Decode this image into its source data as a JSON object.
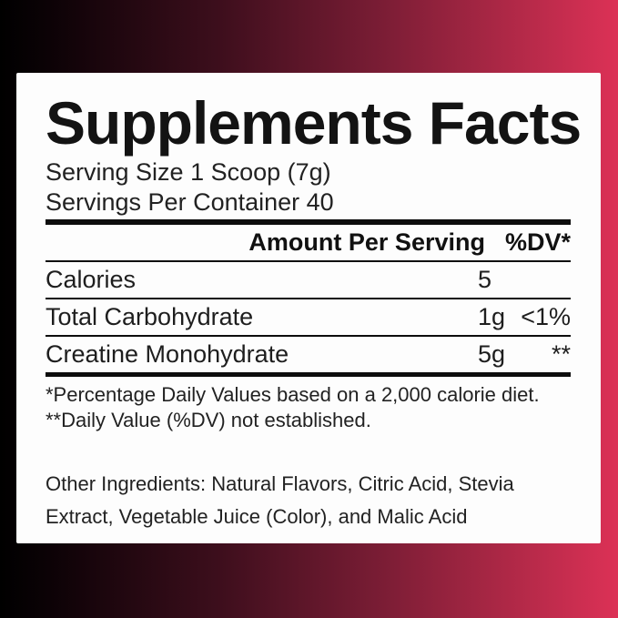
{
  "panel": {
    "title": "Supplements Facts",
    "serving_size": "Serving Size 1 Scoop (7g)",
    "servings_per_container": "Servings Per Container 40",
    "header": {
      "amount": "Amount Per Serving",
      "dv": "%DV*"
    },
    "rows": [
      {
        "label": "Calories",
        "amount": "5",
        "dv": ""
      },
      {
        "label": "Total Carbohydrate",
        "amount": "1g",
        "dv": "<1%"
      },
      {
        "label": "Creatine Monohydrate",
        "amount": "5g",
        "dv": "**"
      }
    ],
    "footnotes": [
      "*Percentage Daily Values based on a 2,000 calorie diet.",
      "**Daily Value (%DV) not established."
    ],
    "other_ingredients": "Other Ingredients: Natural Flavors, Citric Acid, Stevia Extract, Vegetable Juice (Color), and Malic Acid"
  },
  "colors": {
    "background_left": "#000000",
    "background_right": "#dc3156",
    "panel_background": "#fdfdfd",
    "text": "#1c1c1c",
    "rule": "#0d0d0d"
  }
}
